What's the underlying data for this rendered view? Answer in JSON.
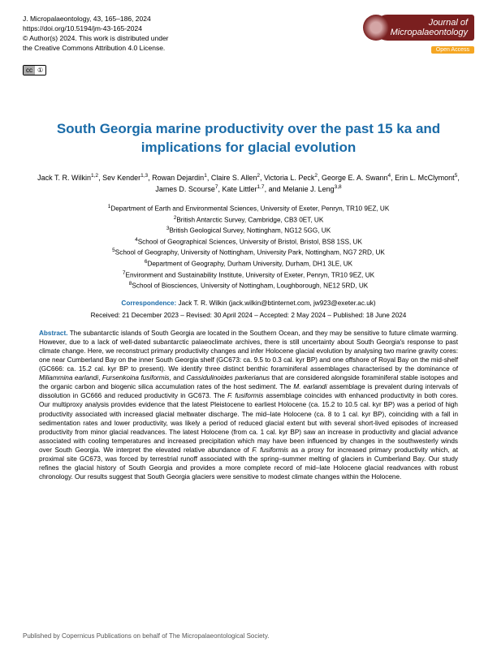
{
  "header": {
    "journal_ref": "J. Micropalaeontology, 43, 165–186, 2024",
    "doi": "https://doi.org/10.5194/jm-43-165-2024",
    "copyright": "© Author(s) 2024. This work is distributed under",
    "license": "the Creative Commons Attribution 4.0 License.",
    "journal_name_line1": "Journal of",
    "journal_name_line2": "Micropalaeontology",
    "open_access": "Open Access",
    "cc_left": "cc",
    "cc_right": "①"
  },
  "title": "South Georgia marine productivity over the past 15 ka and implications for glacial evolution",
  "authors_html": "Jack T. R. Wilkin<sup>1,2</sup>, Sev Kender<sup>1,3</sup>, Rowan Dejardin<sup>1</sup>, Claire S. Allen<sup>2</sup>, Victoria L. Peck<sup>2</sup>, George E. A. Swann<sup>4</sup>, Erin L. McClymont<sup>5</sup>, James D. Scourse<sup>7</sup>, Kate Littler<sup>1,7</sup>, and Melanie J. Leng<sup>3,8</sup>",
  "affiliations": [
    "<sup>1</sup>Department of Earth and Environmental Sciences, University of Exeter, Penryn, TR10 9EZ, UK",
    "<sup>2</sup>British Antarctic Survey, Cambridge, CB3 0ET, UK",
    "<sup>3</sup>British Geological Survey, Nottingham, NG12 5GG, UK",
    "<sup>4</sup>School of Geographical Sciences, University of Bristol, Bristol, BS8 1SS, UK",
    "<sup>5</sup>School of Geography, University of Nottingham, University Park, Nottingham, NG7 2RD, UK",
    "<sup>6</sup>Department of Geography, Durham University, Durham, DH1 3LE, UK",
    "<sup>7</sup>Environment and Sustainability Institute, University of Exeter, Penryn, TR10 9EZ, UK",
    "<sup>8</sup>School of Biosciences, University of Nottingham, Loughborough, NE12 5RD, UK"
  ],
  "correspondence": {
    "label": "Correspondence:",
    "text": " Jack T. R. Wilkin (jack.wilkin@btinternet.com, jw923@exeter.ac.uk)"
  },
  "dates": "Received: 21 December 2023 – Revised: 30 April 2024 – Accepted: 2 May 2024 – Published: 18 June 2024",
  "abstract": {
    "label": "Abstract.",
    "text": " The subantarctic islands of South Georgia are located in the Southern Ocean, and they may be sensitive to future climate warming. However, due to a lack of well-dated subantarctic palaeoclimate archives, there is still uncertainty about South Georgia's response to past climate change. Here, we reconstruct primary productivity changes and infer Holocene glacial evolution by analysing two marine gravity cores: one near Cumberland Bay on the inner South Georgia shelf (GC673: ca. 9.5 to 0.3 cal. kyr BP) and one offshore of Royal Bay on the mid-shelf (GC666: ca. 15.2 cal. kyr BP to present). We identify three distinct benthic foraminiferal assemblages characterised by the dominance of <em>Miliammina earlandi</em>, <em>Fursenkoina fusiformis</em>, and <em>Cassidulinoides parkerianus</em> that are considered alongside foraminiferal stable isotopes and the organic carbon and biogenic silica accumulation rates of the host sediment. The <em>M. earlandi</em> assemblage is prevalent during intervals of dissolution in GC666 and reduced productivity in GC673. The <em>F. fusiformis</em> assemblage coincides with enhanced productivity in both cores. Our multiproxy analysis provides evidence that the latest Pleistocene to earliest Holocene (ca. 15.2 to 10.5 cal. kyr BP) was a period of high productivity associated with increased glacial meltwater discharge. The mid–late Holocene (ca. 8 to 1 cal. kyr BP), coinciding with a fall in sedimentation rates and lower productivity, was likely a period of reduced glacial extent but with several short-lived episodes of increased productivity from minor glacial readvances. The latest Holocene (from ca. 1 cal. kyr BP) saw an increase in productivity and glacial advance associated with cooling temperatures and increased precipitation which may have been influenced by changes in the southwesterly winds over South Georgia. We interpret the elevated relative abundance of <em>F. fusiformis</em> as a proxy for increased primary productivity which, at proximal site GC673, was forced by terrestrial runoff associated with the spring–summer melting of glaciers in Cumberland Bay. Our study refines the glacial history of South Georgia and provides a more complete record of mid–late Holocene glacial readvances with robust chronology. Our results suggest that South Georgia glaciers were sensitive to modest climate changes within the Holocene."
  },
  "footer": "Published by Copernicus Publications on behalf of The Micropalaeontological Society."
}
